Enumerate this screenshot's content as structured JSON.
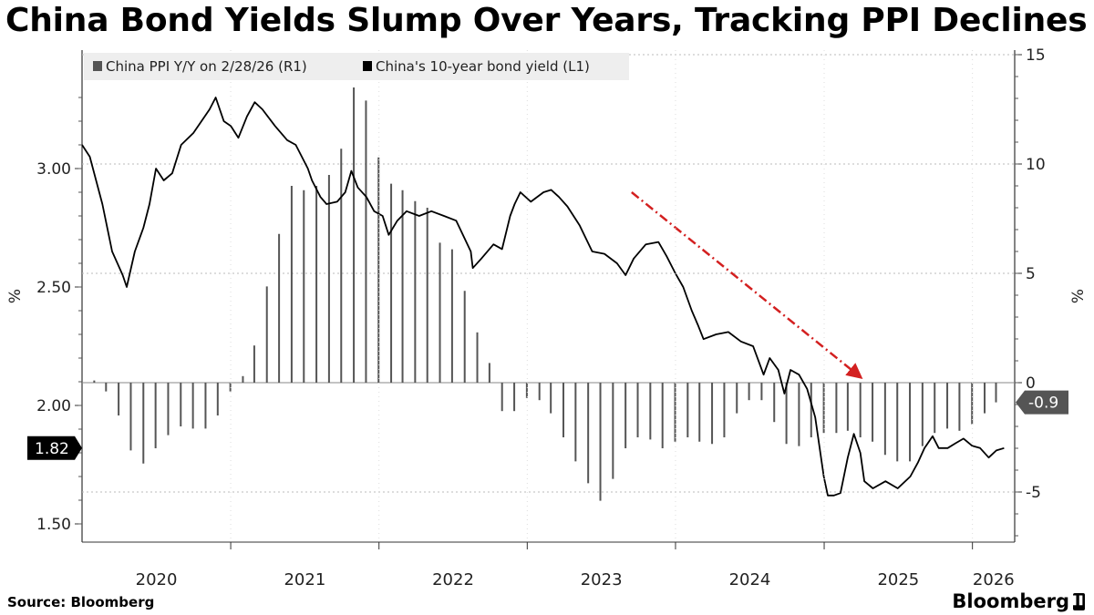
{
  "title": "China Bond Yields Slump Over Years, Tracking PPI Declines",
  "source": "Source: Bloomberg",
  "brand": "Bloomberg",
  "colors": {
    "yield_line": "#000000",
    "ppi_bars": "#555555",
    "trend_arrow": "#d32020",
    "zero_line": "#888888"
  },
  "chart_data": {
    "type": "line+bar",
    "title": "China Bond Yields Slump Over Years, Tracking PPI Declines",
    "left_axis": {
      "label": "%",
      "ticks": [
        "1.50",
        "2.00",
        "2.50",
        "3.00"
      ],
      "range": [
        1.43,
        3.45
      ]
    },
    "right_axis": {
      "label": "%",
      "ticks": [
        "-5",
        "0",
        "5",
        "10",
        "15"
      ],
      "range": [
        -7.2,
        15.5
      ]
    },
    "x_ticks": [
      "2020",
      "2021",
      "2022",
      "2023",
      "2024",
      "2025",
      "2026"
    ],
    "x_range": [
      "2020-01-01",
      "2026-04-15"
    ],
    "legend": [
      {
        "label": "China PPI Y/Y on 2/28/26 (R1)",
        "swatch": "#555555"
      },
      {
        "label": "China's 10-year bond yield (L1)",
        "swatch": "#000000"
      }
    ],
    "last_value_labels": {
      "yield": "1.82",
      "ppi": "-0.9"
    },
    "series": [
      {
        "name": "China's 10-year bond yield (L1)",
        "axis": "left",
        "points": [
          [
            "2020-01-01",
            3.1
          ],
          [
            "2020-01-20",
            3.05
          ],
          [
            "2020-02-20",
            2.85
          ],
          [
            "2020-03-15",
            2.65
          ],
          [
            "2020-04-10",
            2.55
          ],
          [
            "2020-04-20",
            2.5
          ],
          [
            "2020-05-10",
            2.65
          ],
          [
            "2020-05-31",
            2.75
          ],
          [
            "2020-06-15",
            2.85
          ],
          [
            "2020-07-01",
            3.0
          ],
          [
            "2020-07-20",
            2.95
          ],
          [
            "2020-08-10",
            2.98
          ],
          [
            "2020-09-01",
            3.1
          ],
          [
            "2020-10-01",
            3.15
          ],
          [
            "2020-11-10",
            3.25
          ],
          [
            "2020-11-25",
            3.3
          ],
          [
            "2020-12-15",
            3.2
          ],
          [
            "2021-01-01",
            3.18
          ],
          [
            "2021-01-20",
            3.13
          ],
          [
            "2021-02-10",
            3.22
          ],
          [
            "2021-03-01",
            3.28
          ],
          [
            "2021-03-20",
            3.25
          ],
          [
            "2021-04-20",
            3.18
          ],
          [
            "2021-05-20",
            3.12
          ],
          [
            "2021-06-10",
            3.1
          ],
          [
            "2021-07-10",
            3.0
          ],
          [
            "2021-07-20",
            2.95
          ],
          [
            "2021-08-10",
            2.88
          ],
          [
            "2021-08-25",
            2.85
          ],
          [
            "2021-09-20",
            2.86
          ],
          [
            "2021-10-10",
            2.9
          ],
          [
            "2021-10-25",
            2.99
          ],
          [
            "2021-11-10",
            2.92
          ],
          [
            "2021-12-01",
            2.88
          ],
          [
            "2021-12-20",
            2.82
          ],
          [
            "2022-01-10",
            2.8
          ],
          [
            "2022-01-25",
            2.72
          ],
          [
            "2022-02-15",
            2.78
          ],
          [
            "2022-03-10",
            2.82
          ],
          [
            "2022-04-10",
            2.8
          ],
          [
            "2022-05-10",
            2.82
          ],
          [
            "2022-06-10",
            2.8
          ],
          [
            "2022-07-10",
            2.78
          ],
          [
            "2022-08-15",
            2.65
          ],
          [
            "2022-08-20",
            2.58
          ],
          [
            "2022-09-10",
            2.62
          ],
          [
            "2022-10-10",
            2.68
          ],
          [
            "2022-10-31",
            2.66
          ],
          [
            "2022-11-20",
            2.8
          ],
          [
            "2022-12-01",
            2.85
          ],
          [
            "2022-12-15",
            2.9
          ],
          [
            "2023-01-10",
            2.86
          ],
          [
            "2023-02-10",
            2.9
          ],
          [
            "2023-03-01",
            2.91
          ],
          [
            "2023-03-20",
            2.88
          ],
          [
            "2023-04-10",
            2.84
          ],
          [
            "2023-05-10",
            2.76
          ],
          [
            "2023-06-10",
            2.65
          ],
          [
            "2023-07-10",
            2.64
          ],
          [
            "2023-08-10",
            2.6
          ],
          [
            "2023-08-31",
            2.55
          ],
          [
            "2023-09-20",
            2.62
          ],
          [
            "2023-10-20",
            2.68
          ],
          [
            "2023-11-20",
            2.69
          ],
          [
            "2023-12-10",
            2.63
          ],
          [
            "2023-12-31",
            2.56
          ],
          [
            "2024-01-20",
            2.5
          ],
          [
            "2024-02-10",
            2.4
          ],
          [
            "2024-02-25",
            2.34
          ],
          [
            "2024-03-10",
            2.28
          ],
          [
            "2024-04-10",
            2.3
          ],
          [
            "2024-05-10",
            2.31
          ],
          [
            "2024-06-10",
            2.27
          ],
          [
            "2024-07-10",
            2.25
          ],
          [
            "2024-08-05",
            2.13
          ],
          [
            "2024-08-20",
            2.2
          ],
          [
            "2024-09-10",
            2.15
          ],
          [
            "2024-09-25",
            2.05
          ],
          [
            "2024-10-10",
            2.15
          ],
          [
            "2024-10-31",
            2.13
          ],
          [
            "2024-11-20",
            2.07
          ],
          [
            "2024-12-10",
            1.95
          ],
          [
            "2024-12-31",
            1.7
          ],
          [
            "2025-01-10",
            1.62
          ],
          [
            "2025-01-25",
            1.62
          ],
          [
            "2025-02-10",
            1.63
          ],
          [
            "2025-02-28",
            1.78
          ],
          [
            "2025-03-15",
            1.88
          ],
          [
            "2025-03-31",
            1.8
          ],
          [
            "2025-04-10",
            1.68
          ],
          [
            "2025-05-01",
            1.65
          ],
          [
            "2025-06-01",
            1.68
          ],
          [
            "2025-07-01",
            1.65
          ],
          [
            "2025-08-01",
            1.7
          ],
          [
            "2025-08-20",
            1.76
          ],
          [
            "2025-09-05",
            1.82
          ],
          [
            "2025-09-25",
            1.87
          ],
          [
            "2025-10-10",
            1.82
          ],
          [
            "2025-11-01",
            1.82
          ],
          [
            "2025-11-20",
            1.84
          ],
          [
            "2025-12-10",
            1.86
          ],
          [
            "2025-12-31",
            1.83
          ],
          [
            "2026-01-20",
            1.82
          ],
          [
            "2026-02-10",
            1.78
          ],
          [
            "2026-03-01",
            1.81
          ],
          [
            "2026-03-20",
            1.82
          ]
        ]
      },
      {
        "name": "China PPI Y/Y on 2/28/26 (R1)",
        "axis": "right",
        "type": "bar",
        "points": [
          [
            "2020-01-31",
            0.1
          ],
          [
            "2020-02-29",
            -0.4
          ],
          [
            "2020-03-31",
            -1.5
          ],
          [
            "2020-04-30",
            -3.1
          ],
          [
            "2020-05-31",
            -3.7
          ],
          [
            "2020-06-30",
            -3.0
          ],
          [
            "2020-07-31",
            -2.4
          ],
          [
            "2020-08-31",
            -2.0
          ],
          [
            "2020-09-30",
            -2.1
          ],
          [
            "2020-10-31",
            -2.1
          ],
          [
            "2020-11-30",
            -1.5
          ],
          [
            "2020-12-31",
            -0.4
          ],
          [
            "2021-01-31",
            0.3
          ],
          [
            "2021-02-28",
            1.7
          ],
          [
            "2021-03-31",
            4.4
          ],
          [
            "2021-04-30",
            6.8
          ],
          [
            "2021-05-31",
            9.0
          ],
          [
            "2021-06-30",
            8.8
          ],
          [
            "2021-07-31",
            9.0
          ],
          [
            "2021-08-31",
            9.5
          ],
          [
            "2021-09-30",
            10.7
          ],
          [
            "2021-10-31",
            13.5
          ],
          [
            "2021-11-30",
            12.9
          ],
          [
            "2021-12-31",
            10.3
          ],
          [
            "2022-01-31",
            9.1
          ],
          [
            "2022-02-28",
            8.8
          ],
          [
            "2022-03-31",
            8.3
          ],
          [
            "2022-04-30",
            8.0
          ],
          [
            "2022-05-31",
            6.4
          ],
          [
            "2022-06-30",
            6.1
          ],
          [
            "2022-07-31",
            4.2
          ],
          [
            "2022-08-31",
            2.3
          ],
          [
            "2022-09-30",
            0.9
          ],
          [
            "2022-10-31",
            -1.3
          ],
          [
            "2022-11-30",
            -1.3
          ],
          [
            "2022-12-31",
            -0.7
          ],
          [
            "2023-01-31",
            -0.8
          ],
          [
            "2023-02-28",
            -1.4
          ],
          [
            "2023-03-31",
            -2.5
          ],
          [
            "2023-04-30",
            -3.6
          ],
          [
            "2023-05-31",
            -4.6
          ],
          [
            "2023-06-30",
            -5.4
          ],
          [
            "2023-07-31",
            -4.4
          ],
          [
            "2023-08-31",
            -3.0
          ],
          [
            "2023-09-30",
            -2.5
          ],
          [
            "2023-10-31",
            -2.6
          ],
          [
            "2023-11-30",
            -3.0
          ],
          [
            "2023-12-31",
            -2.7
          ],
          [
            "2024-01-31",
            -2.5
          ],
          [
            "2024-02-29",
            -2.7
          ],
          [
            "2024-03-31",
            -2.8
          ],
          [
            "2024-04-30",
            -2.5
          ],
          [
            "2024-05-31",
            -1.4
          ],
          [
            "2024-06-30",
            -0.8
          ],
          [
            "2024-07-31",
            -0.8
          ],
          [
            "2024-08-31",
            -1.8
          ],
          [
            "2024-09-30",
            -2.8
          ],
          [
            "2024-10-31",
            -2.9
          ],
          [
            "2024-11-30",
            -2.5
          ],
          [
            "2024-12-31",
            -2.3
          ],
          [
            "2025-01-31",
            -2.3
          ],
          [
            "2025-02-28",
            -2.2
          ],
          [
            "2025-03-31",
            -2.5
          ],
          [
            "2025-04-30",
            -2.7
          ],
          [
            "2025-05-31",
            -3.3
          ],
          [
            "2025-06-30",
            -3.6
          ],
          [
            "2025-07-31",
            -3.6
          ],
          [
            "2025-08-31",
            -2.9
          ],
          [
            "2025-09-30",
            -2.3
          ],
          [
            "2025-10-31",
            -2.1
          ],
          [
            "2025-11-30",
            -2.2
          ],
          [
            "2025-12-31",
            -1.9
          ],
          [
            "2026-01-31",
            -1.4
          ],
          [
            "2026-02-28",
            -0.9
          ]
        ]
      }
    ],
    "annotation": {
      "type": "arrow",
      "from": [
        "2023-09-15",
        2.9
      ],
      "to": [
        "2025-03-31",
        2.12
      ]
    }
  }
}
